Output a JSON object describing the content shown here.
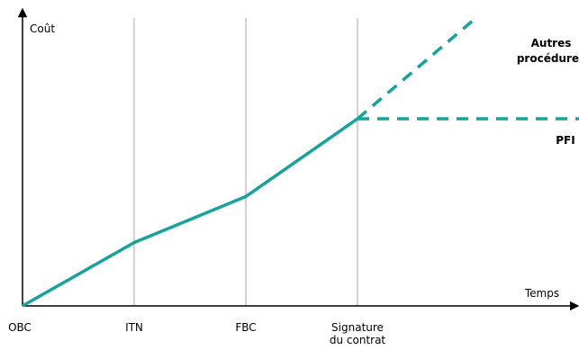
{
  "chart_data": {
    "type": "line",
    "ylabel": "Coût",
    "xlabel": "Temps",
    "categories": [
      "OBC",
      "ITN",
      "FBC",
      "Signature du contrat"
    ],
    "stage_labels": [
      {
        "lines": [
          "OBC"
        ]
      },
      {
        "lines": [
          "ITN"
        ]
      },
      {
        "lines": [
          "FBC"
        ]
      },
      {
        "lines": [
          "Signature",
          "du contrat"
        ]
      }
    ],
    "xlim": [
      0,
      5
    ],
    "ylim": [
      0,
      100
    ],
    "x": [
      0,
      1,
      2,
      3
    ],
    "grid": {
      "vertical_stage_lines": true,
      "horizontal": false
    },
    "axis_ticks": false,
    "colors": {
      "line": "#15a39a",
      "axis": "#000000",
      "stage_lines": "#a6a6a6"
    },
    "series": [
      {
        "style": "solid",
        "x": [
          0,
          1,
          2,
          3
        ],
        "y": [
          0,
          22,
          38,
          65
        ]
      },
      {
        "style": "dashed",
        "x": [
          3,
          4.06
        ],
        "y": [
          65,
          100
        ]
      },
      {
        "style": "dashed",
        "x": [
          3,
          5
        ],
        "y": [
          65,
          65
        ]
      }
    ],
    "annotations": [
      {
        "lines": [
          "Autres",
          "procédures"
        ]
      },
      {
        "lines": [
          "PFI"
        ]
      }
    ]
  }
}
